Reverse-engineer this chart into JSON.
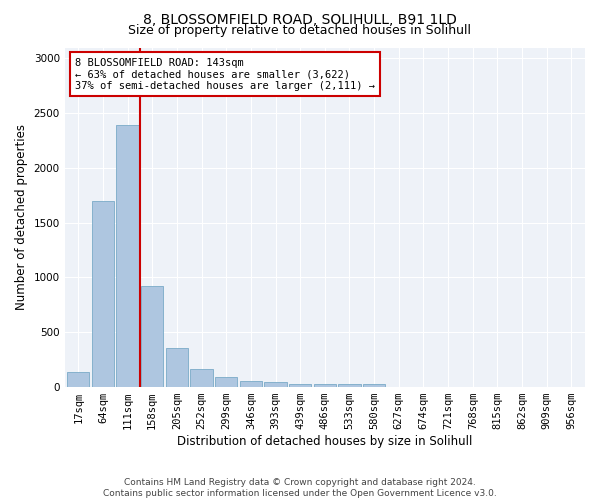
{
  "title1": "8, BLOSSOMFIELD ROAD, SOLIHULL, B91 1LD",
  "title2": "Size of property relative to detached houses in Solihull",
  "xlabel": "Distribution of detached houses by size in Solihull",
  "ylabel": "Number of detached properties",
  "bar_color": "#aec6e0",
  "bar_edge_color": "#7aaac8",
  "categories": [
    "17sqm",
    "64sqm",
    "111sqm",
    "158sqm",
    "205sqm",
    "252sqm",
    "299sqm",
    "346sqm",
    "393sqm",
    "439sqm",
    "486sqm",
    "533sqm",
    "580sqm",
    "627sqm",
    "674sqm",
    "721sqm",
    "768sqm",
    "815sqm",
    "862sqm",
    "909sqm",
    "956sqm"
  ],
  "values": [
    135,
    1700,
    2390,
    915,
    350,
    160,
    90,
    55,
    40,
    25,
    20,
    20,
    20,
    0,
    0,
    0,
    0,
    0,
    0,
    0,
    0
  ],
  "ylim": [
    0,
    3100
  ],
  "yticks": [
    0,
    500,
    1000,
    1500,
    2000,
    2500,
    3000
  ],
  "annotation_text": "8 BLOSSOMFIELD ROAD: 143sqm\n← 63% of detached houses are smaller (3,622)\n37% of semi-detached houses are larger (2,111) →",
  "annotation_box_color": "#ffffff",
  "annotation_box_edge_color": "#cc0000",
  "vline_color": "#cc0000",
  "footnote": "Contains HM Land Registry data © Crown copyright and database right 2024.\nContains public sector information licensed under the Open Government Licence v3.0.",
  "bg_color": "#eef2f8",
  "grid_color": "#ffffff",
  "title1_fontsize": 10,
  "title2_fontsize": 9,
  "xlabel_fontsize": 8.5,
  "ylabel_fontsize": 8.5,
  "tick_fontsize": 7.5,
  "footnote_fontsize": 6.5
}
